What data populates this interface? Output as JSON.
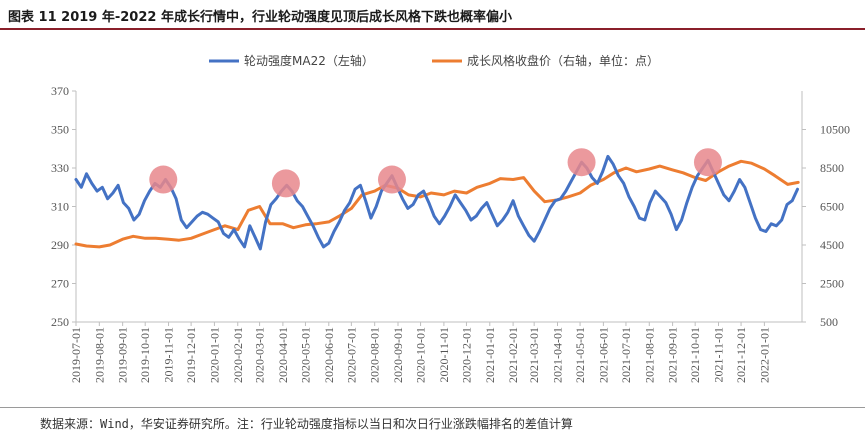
{
  "figure": {
    "title": "图表 11 2019 年-2022 年成长行情中，行业轮动强度见顶后成长风格下跌也概率偏小",
    "source": "数据来源：Wind，华安证券研究所。注：行业轮动强度指标以当日和次日行业涨跌幅排名的差值计算"
  },
  "chart_data": {
    "type": "line",
    "title": "",
    "xlabel": "",
    "ylabel": "",
    "x_tick_labels": [
      "2019-07-01",
      "2019-08-01",
      "2019-09-01",
      "2019-10-01",
      "2019-11-01",
      "2019-12-01",
      "2020-01-01",
      "2020-02-01",
      "2020-03-01",
      "2020-04-01",
      "2020-05-01",
      "2020-06-01",
      "2020-07-01",
      "2020-08-01",
      "2020-09-01",
      "2020-10-01",
      "2020-11-01",
      "2020-12-01",
      "2021-01-01",
      "2021-02-01",
      "2021-03-01",
      "2021-04-01",
      "2021-05-01",
      "2021-06-01",
      "2021-07-01",
      "2021-08-01",
      "2021-09-01",
      "2021-10-01",
      "2021-11-01",
      "2021-12-01",
      "2022-01-01"
    ],
    "x_range": [
      "2019-07-01",
      "2022-02-20"
    ],
    "left_axis": {
      "ylim": [
        250,
        370
      ],
      "ticks": [
        "250",
        "270",
        "290",
        "310",
        "330",
        "350",
        "370"
      ]
    },
    "right_axis": {
      "ylim": [
        500,
        12500
      ],
      "ticks": [
        "500",
        "2500",
        "4500",
        "6500",
        "8500",
        "10500"
      ]
    },
    "grid": false,
    "legend_position": "top",
    "series": [
      {
        "name": "轮动强度MA22（左轴）",
        "axis": "left",
        "color": "#4472C4",
        "points": [
          [
            "2019-07-01",
            324
          ],
          [
            "2019-07-08",
            320
          ],
          [
            "2019-07-15",
            327
          ],
          [
            "2019-07-22",
            322
          ],
          [
            "2019-07-29",
            318
          ],
          [
            "2019-08-05",
            320
          ],
          [
            "2019-08-12",
            314
          ],
          [
            "2019-08-19",
            317
          ],
          [
            "2019-08-26",
            321
          ],
          [
            "2019-09-02",
            312
          ],
          [
            "2019-09-09",
            309
          ],
          [
            "2019-09-16",
            303
          ],
          [
            "2019-09-23",
            306
          ],
          [
            "2019-09-30",
            313
          ],
          [
            "2019-10-07",
            318
          ],
          [
            "2019-10-14",
            322
          ],
          [
            "2019-10-21",
            320
          ],
          [
            "2019-10-28",
            324
          ],
          [
            "2019-11-04",
            320
          ],
          [
            "2019-11-11",
            314
          ],
          [
            "2019-11-18",
            303
          ],
          [
            "2019-11-25",
            299
          ],
          [
            "2019-12-02",
            302
          ],
          [
            "2019-12-09",
            305
          ],
          [
            "2019-12-16",
            307
          ],
          [
            "2019-12-23",
            306
          ],
          [
            "2019-12-30",
            304
          ],
          [
            "2020-01-06",
            302
          ],
          [
            "2020-01-13",
            296
          ],
          [
            "2020-01-20",
            294
          ],
          [
            "2020-01-27",
            298
          ],
          [
            "2020-02-03",
            293
          ],
          [
            "2020-02-10",
            289
          ],
          [
            "2020-02-17",
            300
          ],
          [
            "2020-02-24",
            294
          ],
          [
            "2020-03-02",
            288
          ],
          [
            "2020-03-09",
            302
          ],
          [
            "2020-03-16",
            311
          ],
          [
            "2020-03-23",
            314
          ],
          [
            "2020-03-30",
            318
          ],
          [
            "2020-04-06",
            321
          ],
          [
            "2020-04-13",
            318
          ],
          [
            "2020-04-20",
            313
          ],
          [
            "2020-04-27",
            310
          ],
          [
            "2020-05-04",
            305
          ],
          [
            "2020-05-11",
            300
          ],
          [
            "2020-05-18",
            294
          ],
          [
            "2020-05-25",
            289
          ],
          [
            "2020-06-01",
            291
          ],
          [
            "2020-06-08",
            297
          ],
          [
            "2020-06-15",
            302
          ],
          [
            "2020-06-22",
            308
          ],
          [
            "2020-06-29",
            312
          ],
          [
            "2020-07-06",
            319
          ],
          [
            "2020-07-13",
            321
          ],
          [
            "2020-07-20",
            313
          ],
          [
            "2020-07-27",
            304
          ],
          [
            "2020-08-03",
            310
          ],
          [
            "2020-08-10",
            318
          ],
          [
            "2020-08-17",
            322
          ],
          [
            "2020-08-24",
            326
          ],
          [
            "2020-08-31",
            320
          ],
          [
            "2020-09-07",
            314
          ],
          [
            "2020-09-14",
            309
          ],
          [
            "2020-09-21",
            311
          ],
          [
            "2020-09-28",
            316
          ],
          [
            "2020-10-05",
            318
          ],
          [
            "2020-10-12",
            312
          ],
          [
            "2020-10-19",
            305
          ],
          [
            "2020-10-26",
            301
          ],
          [
            "2020-11-02",
            305
          ],
          [
            "2020-11-09",
            310
          ],
          [
            "2020-11-16",
            316
          ],
          [
            "2020-11-23",
            312
          ],
          [
            "2020-11-30",
            308
          ],
          [
            "2020-12-07",
            303
          ],
          [
            "2020-12-14",
            305
          ],
          [
            "2020-12-21",
            309
          ],
          [
            "2020-12-28",
            312
          ],
          [
            "2021-01-04",
            306
          ],
          [
            "2021-01-11",
            300
          ],
          [
            "2021-01-18",
            303
          ],
          [
            "2021-01-25",
            307
          ],
          [
            "2021-02-01",
            313
          ],
          [
            "2021-02-08",
            305
          ],
          [
            "2021-02-15",
            300
          ],
          [
            "2021-02-22",
            295
          ],
          [
            "2021-03-01",
            292
          ],
          [
            "2021-03-08",
            297
          ],
          [
            "2021-03-15",
            303
          ],
          [
            "2021-03-22",
            309
          ],
          [
            "2021-03-29",
            313
          ],
          [
            "2021-04-05",
            314
          ],
          [
            "2021-04-12",
            318
          ],
          [
            "2021-04-19",
            323
          ],
          [
            "2021-04-26",
            328
          ],
          [
            "2021-05-03",
            333
          ],
          [
            "2021-05-10",
            330
          ],
          [
            "2021-05-17",
            325
          ],
          [
            "2021-05-24",
            322
          ],
          [
            "2021-05-31",
            328
          ],
          [
            "2021-06-07",
            336
          ],
          [
            "2021-06-14",
            332
          ],
          [
            "2021-06-21",
            326
          ],
          [
            "2021-06-28",
            322
          ],
          [
            "2021-07-05",
            315
          ],
          [
            "2021-07-12",
            310
          ],
          [
            "2021-07-19",
            304
          ],
          [
            "2021-07-26",
            303
          ],
          [
            "2021-08-02",
            312
          ],
          [
            "2021-08-09",
            318
          ],
          [
            "2021-08-16",
            315
          ],
          [
            "2021-08-23",
            312
          ],
          [
            "2021-08-30",
            306
          ],
          [
            "2021-09-06",
            298
          ],
          [
            "2021-09-13",
            303
          ],
          [
            "2021-09-20",
            312
          ],
          [
            "2021-09-27",
            320
          ],
          [
            "2021-10-04",
            326
          ],
          [
            "2021-10-11",
            330
          ],
          [
            "2021-10-18",
            334
          ],
          [
            "2021-10-25",
            328
          ],
          [
            "2021-11-01",
            322
          ],
          [
            "2021-11-08",
            316
          ],
          [
            "2021-11-15",
            313
          ],
          [
            "2021-11-22",
            318
          ],
          [
            "2021-11-29",
            324
          ],
          [
            "2021-12-06",
            320
          ],
          [
            "2021-12-13",
            312
          ],
          [
            "2021-12-20",
            304
          ],
          [
            "2021-12-27",
            298
          ],
          [
            "2022-01-03",
            297
          ],
          [
            "2022-01-10",
            301
          ],
          [
            "2022-01-17",
            300
          ],
          [
            "2022-01-24",
            303
          ],
          [
            "2022-01-31",
            311
          ],
          [
            "2022-02-07",
            313
          ],
          [
            "2022-02-14",
            319
          ]
        ]
      },
      {
        "name": "成长风格收盘价（右轴，单位：点）",
        "axis": "right",
        "color": "#ED7D31",
        "points": [
          [
            "2019-07-01",
            4550
          ],
          [
            "2019-07-15",
            4450
          ],
          [
            "2019-08-01",
            4400
          ],
          [
            "2019-08-15",
            4500
          ],
          [
            "2019-09-01",
            4800
          ],
          [
            "2019-09-15",
            4950
          ],
          [
            "2019-10-01",
            4850
          ],
          [
            "2019-10-15",
            4850
          ],
          [
            "2019-11-01",
            4800
          ],
          [
            "2019-11-15",
            4750
          ],
          [
            "2019-12-01",
            4850
          ],
          [
            "2019-12-15",
            5050
          ],
          [
            "2020-01-01",
            5300
          ],
          [
            "2020-01-15",
            5500
          ],
          [
            "2020-02-01",
            5300
          ],
          [
            "2020-02-15",
            6300
          ],
          [
            "2020-03-01",
            6500
          ],
          [
            "2020-03-15",
            5600
          ],
          [
            "2020-04-01",
            5600
          ],
          [
            "2020-04-15",
            5400
          ],
          [
            "2020-05-01",
            5550
          ],
          [
            "2020-05-15",
            5600
          ],
          [
            "2020-06-01",
            5700
          ],
          [
            "2020-06-15",
            6000
          ],
          [
            "2020-07-01",
            6400
          ],
          [
            "2020-07-15",
            7100
          ],
          [
            "2020-08-01",
            7300
          ],
          [
            "2020-08-15",
            7600
          ],
          [
            "2020-09-01",
            7450
          ],
          [
            "2020-09-15",
            7100
          ],
          [
            "2020-10-01",
            7000
          ],
          [
            "2020-10-15",
            7200
          ],
          [
            "2020-11-01",
            7100
          ],
          [
            "2020-11-15",
            7300
          ],
          [
            "2020-12-01",
            7200
          ],
          [
            "2020-12-15",
            7500
          ],
          [
            "2021-01-01",
            7700
          ],
          [
            "2021-01-15",
            7950
          ],
          [
            "2021-02-01",
            7900
          ],
          [
            "2021-02-15",
            8000
          ],
          [
            "2021-03-01",
            7300
          ],
          [
            "2021-03-15",
            6750
          ],
          [
            "2021-04-01",
            6850
          ],
          [
            "2021-04-15",
            7000
          ],
          [
            "2021-05-01",
            7200
          ],
          [
            "2021-05-15",
            7600
          ],
          [
            "2021-06-01",
            7900
          ],
          [
            "2021-06-15",
            8250
          ],
          [
            "2021-07-01",
            8500
          ],
          [
            "2021-07-15",
            8300
          ],
          [
            "2021-08-01",
            8450
          ],
          [
            "2021-08-15",
            8600
          ],
          [
            "2021-09-01",
            8400
          ],
          [
            "2021-09-15",
            8250
          ],
          [
            "2021-10-01",
            8000
          ],
          [
            "2021-10-15",
            7850
          ],
          [
            "2021-11-01",
            8300
          ],
          [
            "2021-11-15",
            8600
          ],
          [
            "2021-12-01",
            8850
          ],
          [
            "2021-12-15",
            8750
          ],
          [
            "2022-01-01",
            8450
          ],
          [
            "2022-01-15",
            8100
          ],
          [
            "2022-02-01",
            7650
          ],
          [
            "2022-02-15",
            7750
          ]
        ]
      }
    ],
    "highlights": [
      {
        "x": "2019-10-25",
        "y": 324,
        "color": "#E8878C"
      },
      {
        "x": "2020-04-05",
        "y": 322,
        "color": "#E8878C"
      },
      {
        "x": "2020-08-24",
        "y": 324,
        "color": "#E8878C"
      },
      {
        "x": "2021-05-03",
        "y": 333,
        "color": "#E8878C"
      },
      {
        "x": "2021-10-18",
        "y": 333,
        "color": "#E8878C"
      }
    ]
  }
}
